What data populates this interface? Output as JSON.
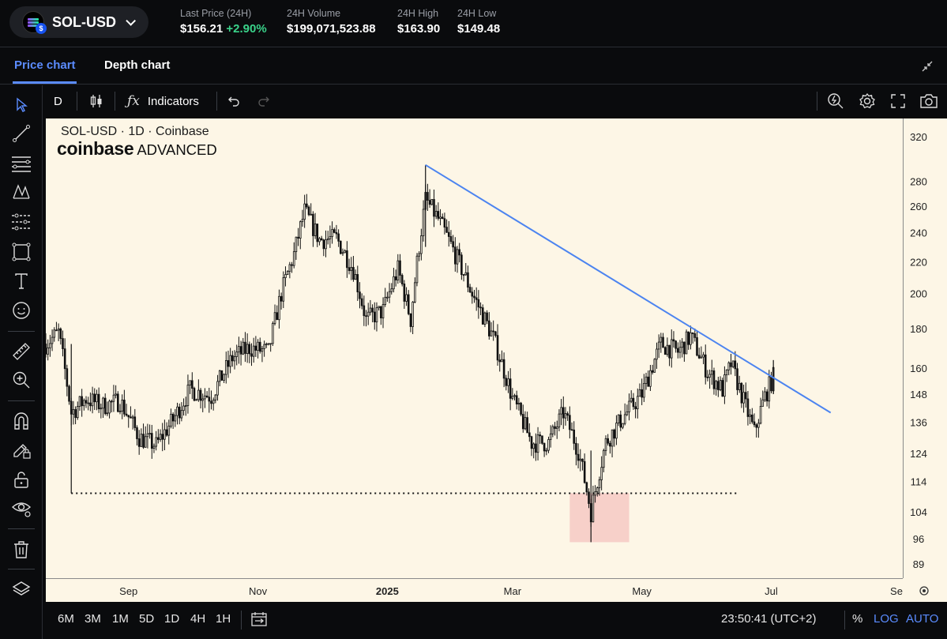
{
  "header": {
    "pair": "SOL-USD",
    "stats": [
      {
        "label": "Last Price (24H)",
        "value": "$156.21",
        "change": "+2.90%"
      },
      {
        "label": "24H Volume",
        "value": "$199,071,523.88"
      },
      {
        "label": "24H High",
        "value": "$163.90"
      },
      {
        "label": "24H Low",
        "value": "$149.48"
      }
    ]
  },
  "tabs": [
    {
      "label": "Price chart",
      "active": true
    },
    {
      "label": "Depth chart",
      "active": false
    }
  ],
  "toolbar": {
    "interval": "D",
    "indicators_label": "Indicators"
  },
  "left_tools": [
    "cursor-icon",
    "trendline-icon",
    "fib-icon",
    "pattern-icon",
    "projection-icon",
    "shapes-icon",
    "text-icon",
    "emoji-icon",
    "ruler-icon",
    "zoom-in-icon",
    "magnet-icon",
    "lock-drawing-icon",
    "lock-icon",
    "eye-icon",
    "trash-icon",
    "layers-icon"
  ],
  "legend": {
    "title": "SOL-USD · 1D · Coinbase",
    "brand_bold": "coinbase",
    "brand_light": "ADVANCED"
  },
  "bottom": {
    "timeframes": [
      "6M",
      "3M",
      "1M",
      "5D",
      "1D",
      "4H",
      "1H"
    ],
    "clock": "23:50:41 (UTC+2)",
    "percent": "%",
    "log": "LOG",
    "auto": "AUTO"
  },
  "colors": {
    "accent": "#5b8cff",
    "positive": "#3ad38a",
    "chart_bg": "#fdf6e6",
    "trendline": "#4c84f0",
    "zone": "#f6c9c3"
  },
  "chart_data": {
    "type": "candlestick",
    "title": "SOL-USD · 1D · Coinbase",
    "y_scale": "log",
    "y_ticks": [
      320,
      280,
      260,
      240,
      220,
      200,
      180,
      160,
      148,
      136,
      124,
      114,
      104,
      96,
      89
    ],
    "x_ticks": [
      "Sep",
      "Nov",
      "2025",
      "Mar",
      "May",
      "Jul",
      "Se"
    ],
    "x_range": [
      "2024-07-24",
      "2025-09-01"
    ],
    "close_series": [
      {
        "date": "2024-07-24",
        "close": 172
      },
      {
        "date": "2024-07-30",
        "close": 178
      },
      {
        "date": "2024-08-05",
        "close": 140
      },
      {
        "date": "2024-08-12",
        "close": 146
      },
      {
        "date": "2024-08-20",
        "close": 143
      },
      {
        "date": "2024-08-28",
        "close": 145
      },
      {
        "date": "2024-09-06",
        "close": 130
      },
      {
        "date": "2024-09-14",
        "close": 127
      },
      {
        "date": "2024-09-22",
        "close": 137
      },
      {
        "date": "2024-09-30",
        "close": 150
      },
      {
        "date": "2024-10-10",
        "close": 147
      },
      {
        "date": "2024-10-20",
        "close": 165
      },
      {
        "date": "2024-10-28",
        "close": 170
      },
      {
        "date": "2024-11-06",
        "close": 168
      },
      {
        "date": "2024-11-12",
        "close": 200
      },
      {
        "date": "2024-11-18",
        "close": 225
      },
      {
        "date": "2024-11-23",
        "close": 256
      },
      {
        "date": "2024-11-30",
        "close": 235
      },
      {
        "date": "2024-12-08",
        "close": 236
      },
      {
        "date": "2024-12-16",
        "close": 215
      },
      {
        "date": "2024-12-22",
        "close": 185
      },
      {
        "date": "2024-12-30",
        "close": 190
      },
      {
        "date": "2025-01-06",
        "close": 215
      },
      {
        "date": "2025-01-12",
        "close": 185
      },
      {
        "date": "2025-01-19",
        "close": 265
      },
      {
        "date": "2025-01-25",
        "close": 250
      },
      {
        "date": "2025-02-02",
        "close": 225
      },
      {
        "date": "2025-02-10",
        "close": 200
      },
      {
        "date": "2025-02-20",
        "close": 175
      },
      {
        "date": "2025-03-01",
        "close": 146
      },
      {
        "date": "2025-03-10",
        "close": 128
      },
      {
        "date": "2025-03-18",
        "close": 128
      },
      {
        "date": "2025-03-25",
        "close": 140
      },
      {
        "date": "2025-04-01",
        "close": 125
      },
      {
        "date": "2025-04-07",
        "close": 104
      },
      {
        "date": "2025-04-14",
        "close": 128
      },
      {
        "date": "2025-04-22",
        "close": 138
      },
      {
        "date": "2025-05-01",
        "close": 148
      },
      {
        "date": "2025-05-10",
        "close": 172
      },
      {
        "date": "2025-05-18",
        "close": 168
      },
      {
        "date": "2025-05-24",
        "close": 176
      },
      {
        "date": "2025-06-01",
        "close": 158
      },
      {
        "date": "2025-06-08",
        "close": 150
      },
      {
        "date": "2025-06-12",
        "close": 162
      },
      {
        "date": "2025-06-18",
        "close": 145
      },
      {
        "date": "2025-06-23",
        "close": 132
      },
      {
        "date": "2025-06-28",
        "close": 147
      },
      {
        "date": "2025-07-02",
        "close": 156
      }
    ],
    "annotations": {
      "trendline": [
        {
          "date": "2025-01-19",
          "price": 294
        },
        {
          "date": "2025-07-29",
          "price": 140
        }
      ],
      "support_line": {
        "price": 110,
        "from": "2024-08-05",
        "to": "2025-06-15"
      },
      "zone": {
        "from": "2025-03-28",
        "to": "2025-04-25",
        "price_low": 95,
        "price_high": 110
      }
    }
  }
}
